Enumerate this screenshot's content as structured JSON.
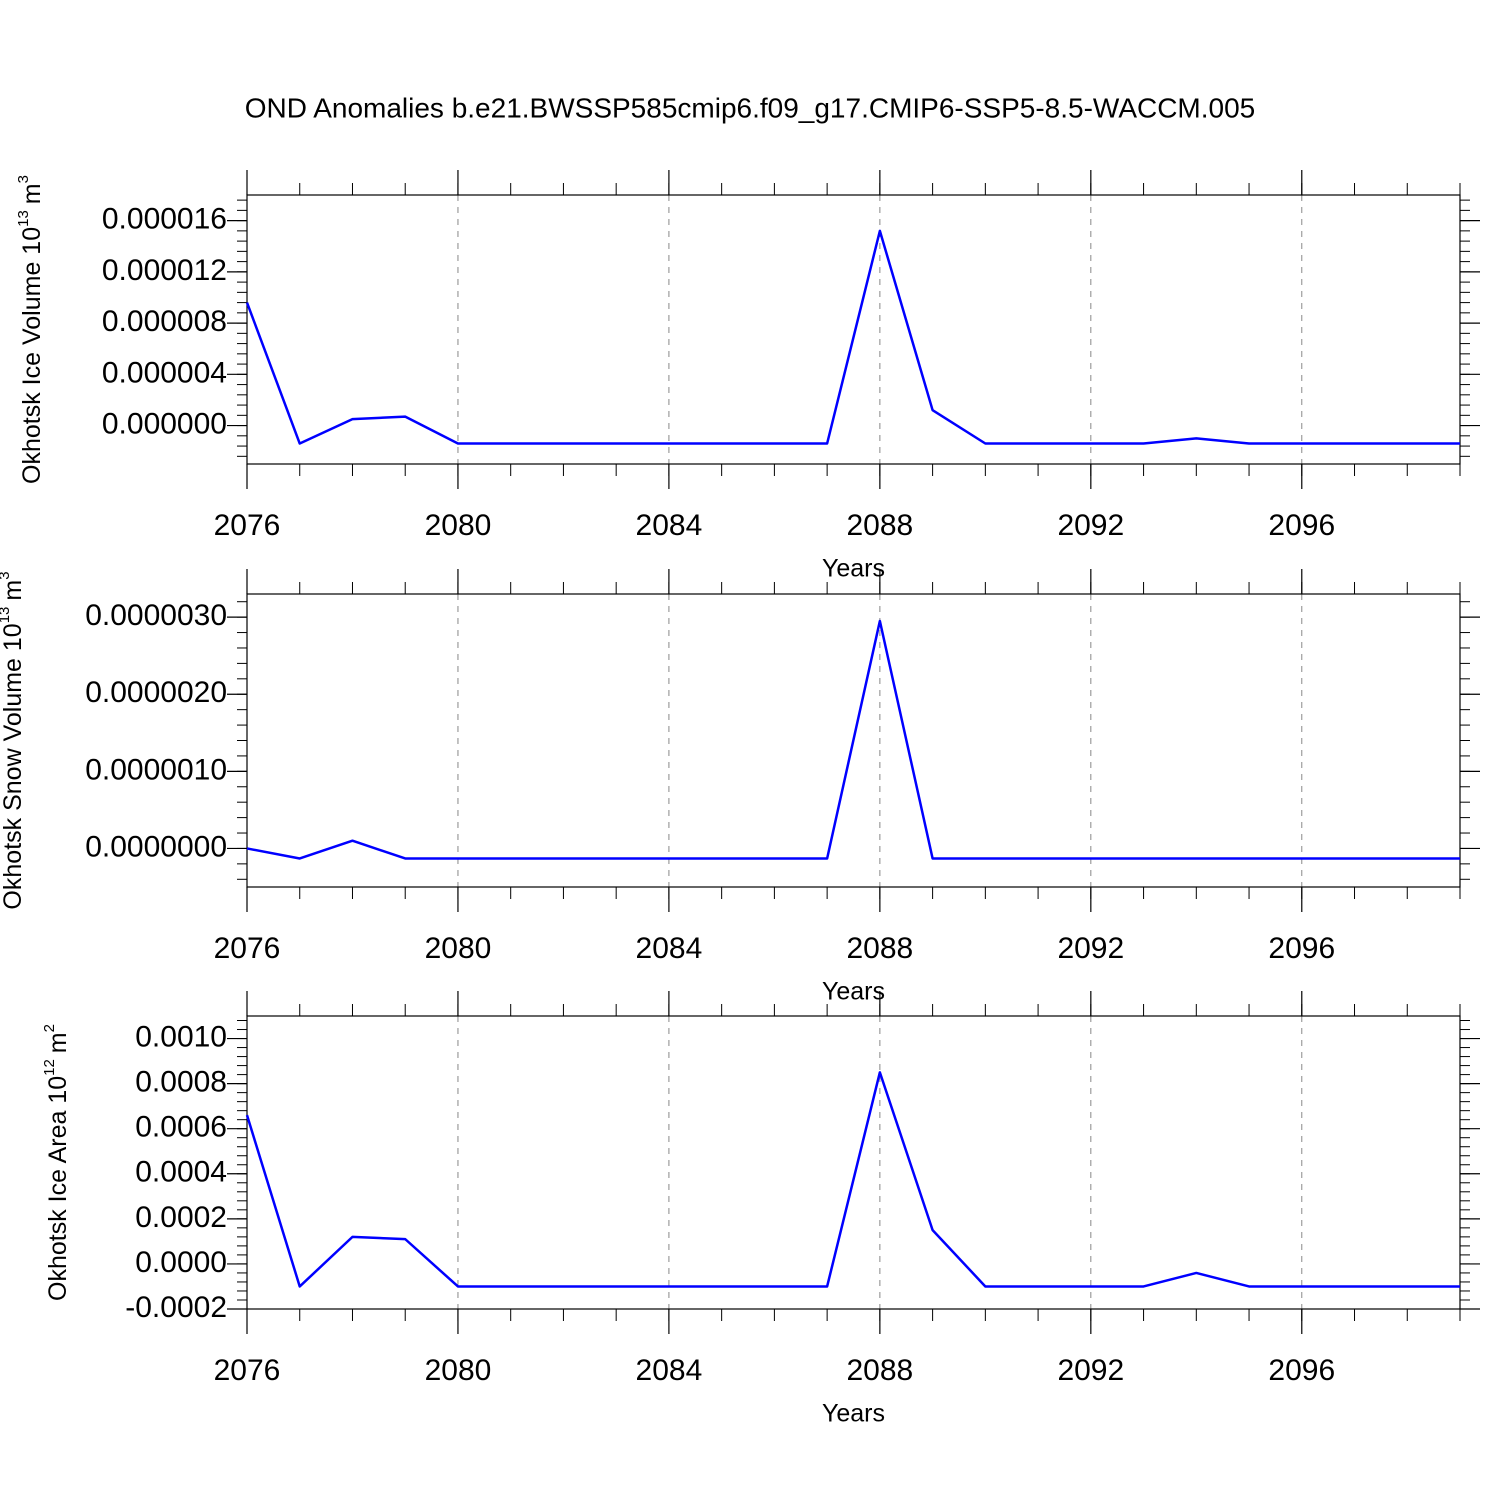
{
  "title": "OND Anomalies b.e21.BWSSP585cmip6.f09_g17.CMIP6-SSP5-8.5-WACCM.005",
  "chart_data": [
    {
      "type": "line",
      "xlabel": "Years",
      "ylabel": [
        {
          "text": "Okhotsk Ice Volume 10"
        },
        {
          "text": "13",
          "sup": true
        },
        {
          "text": "m"
        },
        {
          "text": "3",
          "sup": true
        }
      ],
      "x": [
        2076,
        2077,
        2078,
        2079,
        2080,
        2081,
        2082,
        2083,
        2084,
        2085,
        2086,
        2087,
        2088,
        2089,
        2090,
        2091,
        2092,
        2093,
        2094,
        2095,
        2096,
        2097,
        2098,
        2099
      ],
      "values": [
        9.6e-06,
        -1.4e-06,
        5e-07,
        7e-07,
        -1.4e-06,
        -1.4e-06,
        -1.4e-06,
        -1.4e-06,
        -1.4e-06,
        -1.4e-06,
        -1.4e-06,
        -1.4e-06,
        1.52e-05,
        1.2e-06,
        -1.4e-06,
        -1.4e-06,
        -1.4e-06,
        -1.4e-06,
        -1e-06,
        -1.4e-06,
        -1.4e-06,
        -1.4e-06,
        -1.4e-06,
        -1.4e-06
      ],
      "color": "#0000ff",
      "xlim": [
        2076,
        2099
      ],
      "xticks": [
        2076,
        2080,
        2084,
        2088,
        2092,
        2096
      ],
      "ylim": [
        -3e-06,
        1.8e-05
      ],
      "yticks": [
        {
          "value": 0,
          "label": "0.000000"
        },
        {
          "value": 4e-06,
          "label": "0.000004"
        },
        {
          "value": 8e-06,
          "label": "0.000008"
        },
        {
          "value": 1.2e-05,
          "label": "0.000012"
        },
        {
          "value": 1.6e-05,
          "label": "0.000016"
        }
      ],
      "xgrid": true
    },
    {
      "type": "line",
      "xlabel": "Years",
      "ylabel": [
        {
          "text": "Okhotsk Snow Volume 10"
        },
        {
          "text": "13",
          "sup": true
        },
        {
          "text": "m"
        },
        {
          "text": "3",
          "sup": true
        }
      ],
      "x": [
        2076,
        2077,
        2078,
        2079,
        2080,
        2081,
        2082,
        2083,
        2084,
        2085,
        2086,
        2087,
        2088,
        2089,
        2090,
        2091,
        2092,
        2093,
        2094,
        2095,
        2096,
        2097,
        2098,
        2099
      ],
      "values": [
        0,
        -1.3e-07,
        1e-07,
        -1.3e-07,
        -1.3e-07,
        -1.3e-07,
        -1.3e-07,
        -1.3e-07,
        -1.3e-07,
        -1.3e-07,
        -1.3e-07,
        -1.3e-07,
        2.95e-06,
        -1.3e-07,
        -1.3e-07,
        -1.3e-07,
        -1.3e-07,
        -1.3e-07,
        -1.3e-07,
        -1.3e-07,
        -1.3e-07,
        -1.3e-07,
        -1.3e-07,
        -1.3e-07
      ],
      "color": "#0000ff",
      "xlim": [
        2076,
        2099
      ],
      "xticks": [
        2076,
        2080,
        2084,
        2088,
        2092,
        2096
      ],
      "ylim": [
        -5e-07,
        3.3e-06
      ],
      "yticks": [
        {
          "value": 0,
          "label": "0.0000000"
        },
        {
          "value": 1e-06,
          "label": "0.0000010"
        },
        {
          "value": 2e-06,
          "label": "0.0000020"
        },
        {
          "value": 3e-06,
          "label": "0.0000030"
        }
      ],
      "xgrid": true
    },
    {
      "type": "line",
      "xlabel": "Years",
      "ylabel": [
        {
          "text": "Okhotsk Ice Area 10"
        },
        {
          "text": "12",
          "sup": true
        },
        {
          "text": "m"
        },
        {
          "text": "2",
          "sup": true
        }
      ],
      "x": [
        2076,
        2077,
        2078,
        2079,
        2080,
        2081,
        2082,
        2083,
        2084,
        2085,
        2086,
        2087,
        2088,
        2089,
        2090,
        2091,
        2092,
        2093,
        2094,
        2095,
        2096,
        2097,
        2098,
        2099
      ],
      "values": [
        0.00066,
        -0.0001,
        0.00012,
        0.00011,
        -0.0001,
        -0.0001,
        -0.0001,
        -0.0001,
        -0.0001,
        -0.0001,
        -0.0001,
        -0.0001,
        0.00085,
        0.00015,
        -0.0001,
        -0.0001,
        -0.0001,
        -0.0001,
        -4e-05,
        -0.0001,
        -0.0001,
        -0.0001,
        -0.0001,
        -0.0001
      ],
      "color": "#0000ff",
      "xlim": [
        2076,
        2099
      ],
      "xticks": [
        2076,
        2080,
        2084,
        2088,
        2092,
        2096
      ],
      "ylim": [
        -0.0002,
        0.0011
      ],
      "yticks": [
        {
          "value": -0.0002,
          "label": "-0.0002"
        },
        {
          "value": 0,
          "label": "0.0000"
        },
        {
          "value": 0.0002,
          "label": "0.0002"
        },
        {
          "value": 0.0004,
          "label": "0.0004"
        },
        {
          "value": 0.0006,
          "label": "0.0006"
        },
        {
          "value": 0.0008,
          "label": "0.0008"
        },
        {
          "value": 0.001,
          "label": "0.0010"
        }
      ],
      "xgrid": true
    }
  ]
}
